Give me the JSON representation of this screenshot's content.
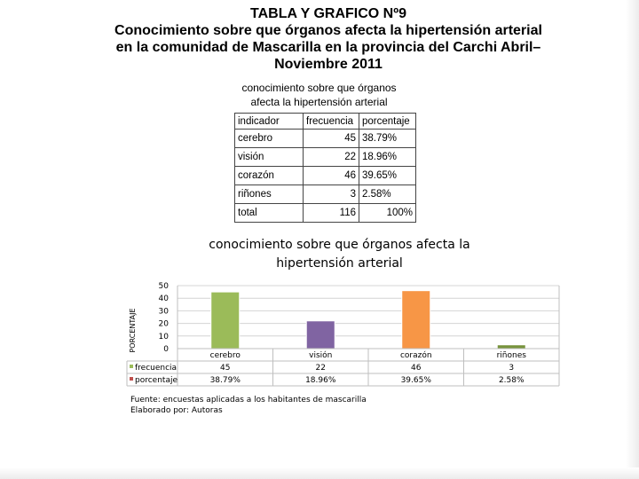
{
  "slide": {
    "title_lines": [
      "TABLA Y GRAFICO Nº9",
      "Conocimiento sobre que órganos afecta la hipertensión arterial",
      "en la comunidad de Mascarilla en la provincia del Carchi Abril–",
      "Noviembre 2011"
    ]
  },
  "table": {
    "caption_lines": [
      "conocimiento sobre que órganos",
      "afecta la hipertensión arterial"
    ],
    "headers": [
      "indicador",
      "frecuencia",
      "porcentaje"
    ],
    "rows": [
      [
        "cerebro",
        "45",
        "38.79%"
      ],
      [
        "visión",
        "22",
        "18.96%"
      ],
      [
        "corazón",
        "46",
        "39.65%"
      ],
      [
        "riñones",
        "3",
        "2.58%"
      ],
      [
        "total",
        "116",
        "100%"
      ]
    ]
  },
  "chart_data": {
    "type": "bar",
    "title_lines": [
      "conocimiento sobre que órganos afecta la",
      "hipertensión arterial"
    ],
    "ylabel": "PORCENTAJE",
    "categories": [
      "cerebro",
      "visión",
      "corazón",
      "riñones"
    ],
    "series": [
      {
        "name": "frecuencia",
        "values": [
          45,
          22,
          46,
          3
        ]
      }
    ],
    "data_table": [
      {
        "name": "frecuencia",
        "values": [
          "45",
          "22",
          "46",
          "3"
        ]
      },
      {
        "name": "porcentaje",
        "values": [
          "38.79%",
          "18.96%",
          "39.65%",
          "2.58%"
        ]
      }
    ],
    "bar_colors": [
      "#9bbb59",
      "#8064a2",
      "#f79646",
      "#77933c"
    ],
    "legend_colors": [
      "#9bbb59",
      "#c0504d"
    ],
    "yticks": [
      0,
      10,
      20,
      30,
      40,
      50
    ],
    "ylim": [
      0,
      50
    ],
    "grid": true,
    "legend": "data table"
  },
  "footer": {
    "source_lines": [
      "Fuente: encuestas aplicadas a los habitantes de mascarilla",
      "Elaborado por: Autoras"
    ]
  }
}
